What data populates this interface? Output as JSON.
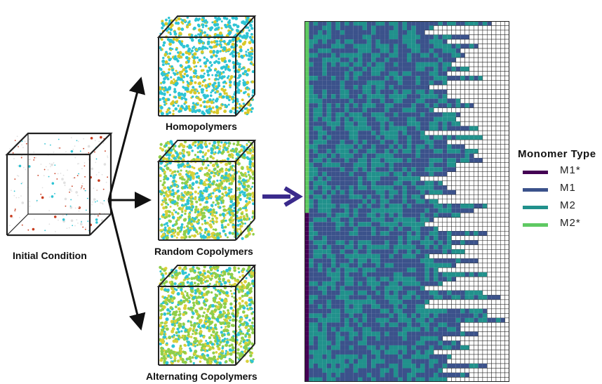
{
  "captions": {
    "initial": "Initial Condition",
    "homopolymers": "Homopolymers",
    "random": "Random Copolymers",
    "alternating": "Alternating Copolymers"
  },
  "legend": {
    "title": "Monomer Type",
    "items": [
      {
        "label": "M1*",
        "color": "#440154"
      },
      {
        "label": "M1",
        "color": "#3b528b"
      },
      {
        "label": "M2",
        "color": "#21918c"
      },
      {
        "label": "M2*",
        "color": "#5ec962"
      }
    ]
  },
  "colors": {
    "homopolymer_a": "#2ec4d4",
    "homopolymer_b": "#d8c82a",
    "copolymer_green": "#8fce4a",
    "copolymer_yellow": "#d9d03a",
    "arrow_main": "#3a2a8c",
    "grid_empty": "#ffffff",
    "grid_line": "#222222"
  }
}
